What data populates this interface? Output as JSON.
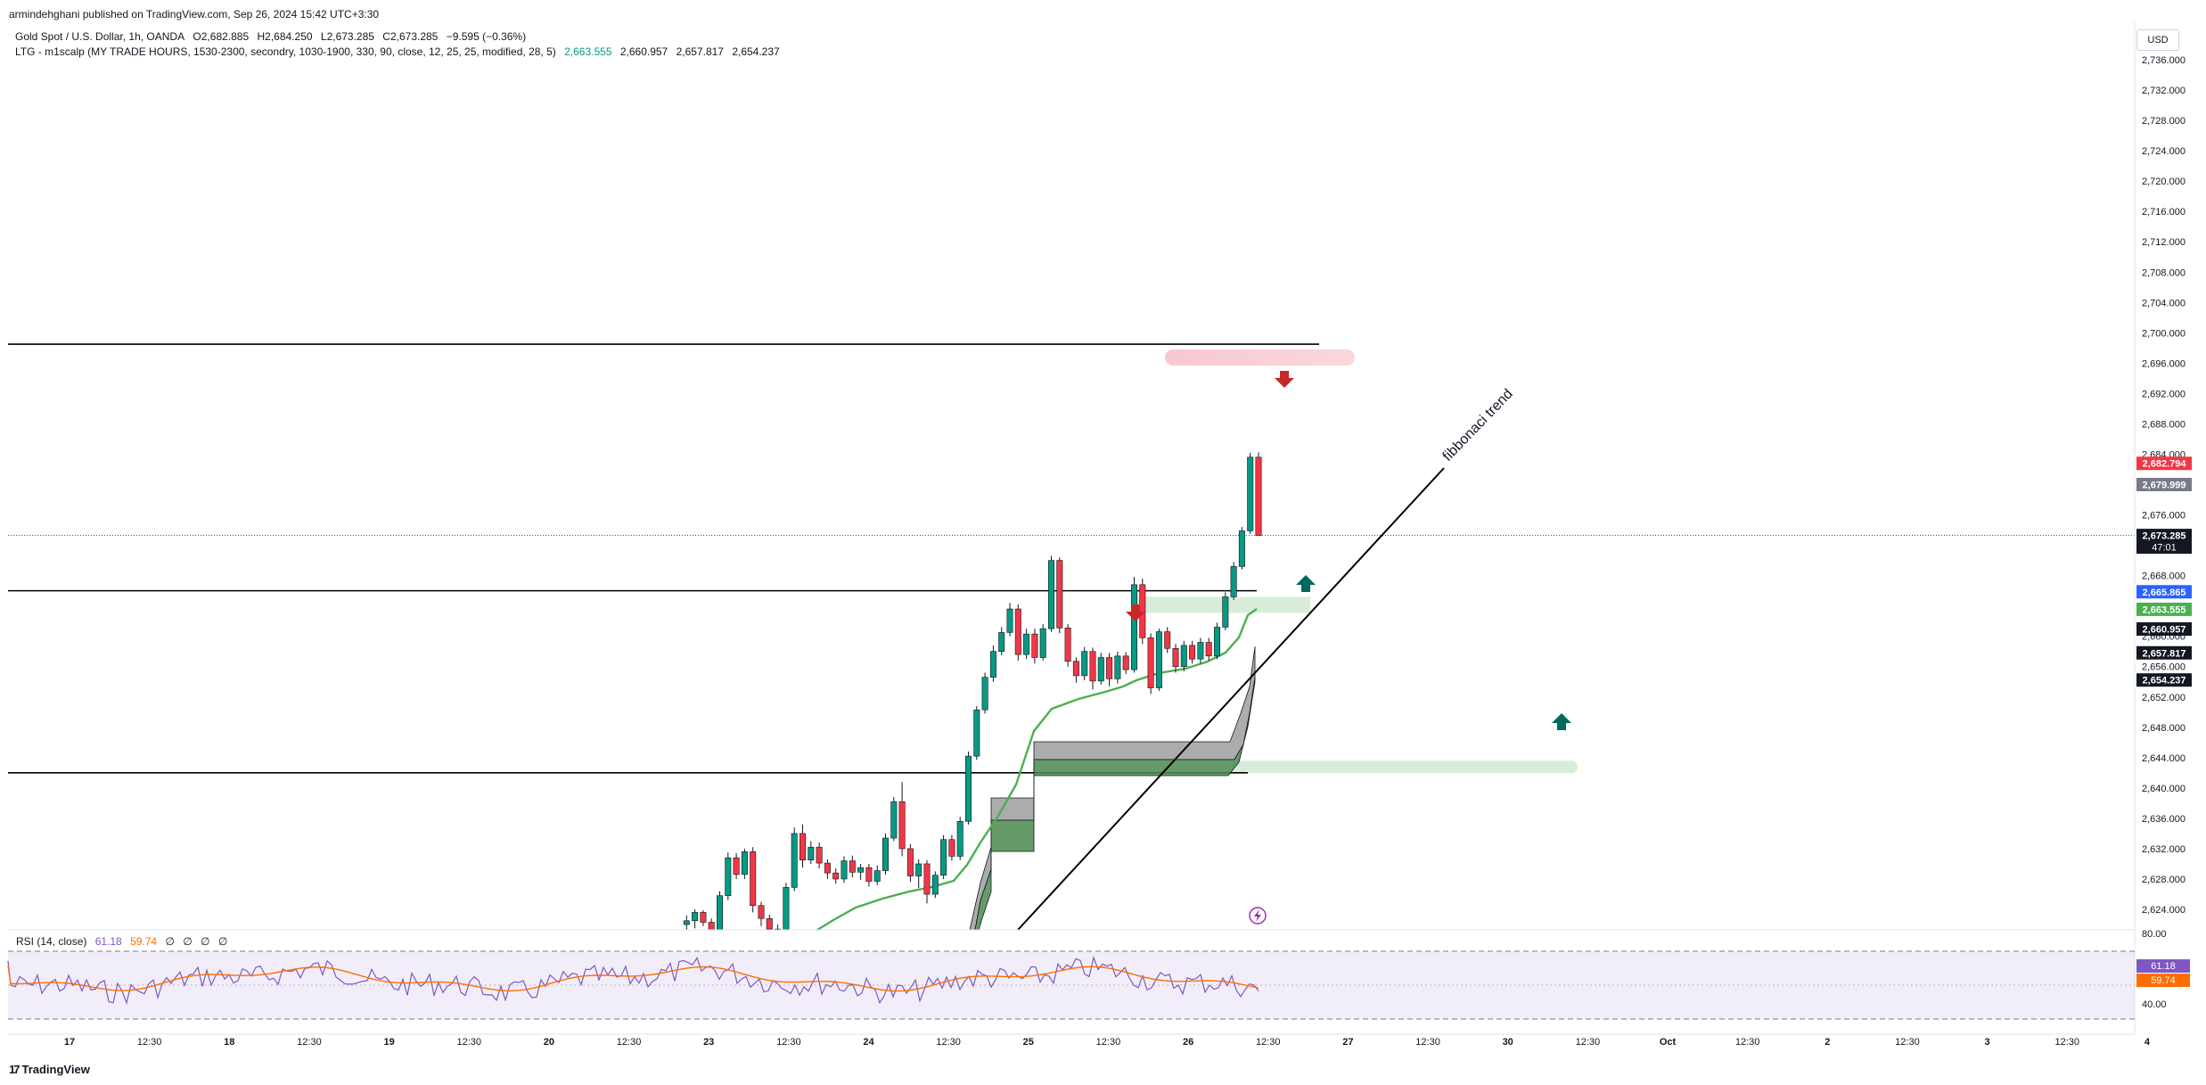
{
  "header": {
    "published": "armindehghani published on TradingView.com, Sep 26, 2024 15:42 UTC+3:30",
    "symbol": "Gold Spot / U.S. Dollar, 1h, OANDA",
    "open": "O2,682.885",
    "high": "H2,684.250",
    "low": "L2,673.285",
    "close": "C2,673.285",
    "change": "−9.595 (−0.36%)",
    "indicator": "LTG - m1scalp (MY TRADE HOURS, 1530-2300, secondry, 1030-1900, 330, 90, close, 12, 25, 25, modified, 28, 5)",
    "indicator_v1": "2,663.555",
    "indicator_v2": "2,660.957",
    "indicator_v3": "2,657.817",
    "indicator_v4": "2,654.237"
  },
  "currency": "USD",
  "brand": "TradingView",
  "brand_icon": "tradingview-logo-icon",
  "rsi": {
    "label": "RSI (14, close)",
    "rsi_value": "61.18",
    "ma_value": "59.74",
    "placeholders": [
      "∅",
      "∅",
      "∅",
      "∅"
    ],
    "axis_top": "80.00",
    "axis_bottom": "40.00"
  },
  "annotation": {
    "text": "fibbonaci trend",
    "icon": "lightning-icon"
  },
  "colors": {
    "up": "#089981",
    "down": "#f23645",
    "ma": "#4caf50",
    "rsi": "#7e57c2",
    "rsi_ma": "#ff6d00"
  },
  "chart_data": {
    "type": "candlestick",
    "title": "",
    "ylim": [
      2620,
      2738
    ],
    "y_ticks": [
      "2,736.000",
      "2,732.000",
      "2,728.000",
      "2,724.000",
      "2,720.000",
      "2,716.000",
      "2,712.000",
      "2,708.000",
      "2,704.000",
      "2,700.000",
      "2,696.000",
      "2,692.000",
      "2,688.000",
      "2,684.000",
      "2,680.000",
      "2,676.000",
      "2,672.000",
      "2,668.000",
      "2,664.000",
      "2,660.000",
      "2,656.000",
      "2,652.000",
      "2,648.000",
      "2,644.000",
      "2,640.000",
      "2,636.000",
      "2,632.000",
      "2,628.000",
      "2,624.000"
    ],
    "x_ticks": [
      "17",
      "12:30",
      "18",
      "12:30",
      "19",
      "12:30",
      "20",
      "12:30",
      "23",
      "12:30",
      "24",
      "12:30",
      "25",
      "12:30",
      "26",
      "12:30",
      "27",
      "12:30",
      "30",
      "12:30",
      "Oct",
      "12:30",
      "2",
      "12:30",
      "3",
      "12:30",
      "4"
    ],
    "price_labels": [
      {
        "text": "2,682.794",
        "value": 2682.794,
        "color": "#f23645"
      },
      {
        "text": "2,679.999",
        "value": 2679.999,
        "color": "#787b86"
      },
      {
        "text": "2,673.285",
        "sub": "47:01",
        "value": 2673.285,
        "color": "#131722"
      },
      {
        "text": "2,665.865",
        "value": 2665.865,
        "color": "#2962ff"
      },
      {
        "text": "2,663.555",
        "value": 2663.555,
        "color": "#4caf50"
      },
      {
        "text": "2,660.957",
        "value": 2660.957,
        "color": "#131722"
      },
      {
        "text": "2,657.817",
        "value": 2657.817,
        "color": "#131722"
      },
      {
        "text": "2,654.237",
        "value": 2654.237,
        "color": "#131722"
      }
    ],
    "horizontal_lines": [
      2698.5,
      2666.0,
      2642.0
    ],
    "current_price": 2673.285,
    "candles": [
      [
        2622.0,
        2623.2,
        2621.0,
        2622.5
      ],
      [
        2622.5,
        2624.0,
        2621.5,
        2623.6
      ],
      [
        2623.6,
        2623.9,
        2621.8,
        2622.3
      ],
      [
        2622.3,
        2622.8,
        2620.5,
        2621.0
      ],
      [
        2621.0,
        2626.4,
        2620.6,
        2625.8
      ],
      [
        2625.8,
        2631.5,
        2625.2,
        2630.8
      ],
      [
        2630.8,
        2631.4,
        2628.0,
        2628.6
      ],
      [
        2628.6,
        2632.0,
        2628.0,
        2631.6
      ],
      [
        2631.6,
        2632.2,
        2623.6,
        2624.5
      ],
      [
        2624.5,
        2625.0,
        2621.8,
        2622.8
      ],
      [
        2622.8,
        2623.3,
        2620.8,
        2621.4
      ],
      [
        2621.4,
        2622.0,
        2620.5,
        2621.2
      ],
      [
        2621.2,
        2627.5,
        2620.8,
        2626.9
      ],
      [
        2626.9,
        2634.8,
        2626.4,
        2634.0
      ],
      [
        2634.0,
        2635.2,
        2629.5,
        2630.5
      ],
      [
        2630.5,
        2633.0,
        2630.0,
        2632.2
      ],
      [
        2632.2,
        2632.8,
        2629.4,
        2630.1
      ],
      [
        2630.1,
        2630.6,
        2628.0,
        2628.8
      ],
      [
        2628.8,
        2629.4,
        2627.4,
        2628.0
      ],
      [
        2628.0,
        2631.0,
        2627.5,
        2630.4
      ],
      [
        2630.4,
        2631.1,
        2628.2,
        2628.9
      ],
      [
        2628.9,
        2630.0,
        2627.9,
        2629.5
      ],
      [
        2629.5,
        2630.0,
        2627.0,
        2627.7
      ],
      [
        2627.7,
        2629.8,
        2627.2,
        2629.1
      ],
      [
        2629.1,
        2634.0,
        2628.6,
        2633.4
      ],
      [
        2633.4,
        2638.8,
        2633.0,
        2638.2
      ],
      [
        2638.2,
        2640.8,
        2631.0,
        2632.0
      ],
      [
        2632.0,
        2632.6,
        2627.6,
        2628.4
      ],
      [
        2628.4,
        2630.6,
        2626.8,
        2630.0
      ],
      [
        2630.0,
        2630.5,
        2624.8,
        2626.0
      ],
      [
        2626.0,
        2629.0,
        2625.5,
        2628.5
      ],
      [
        2628.5,
        2633.8,
        2628.0,
        2633.2
      ],
      [
        2633.2,
        2633.8,
        2630.4,
        2631.0
      ],
      [
        2631.0,
        2636.2,
        2630.5,
        2635.6
      ],
      [
        2635.6,
        2644.8,
        2635.2,
        2644.2
      ],
      [
        2644.2,
        2650.8,
        2643.7,
        2650.3
      ],
      [
        2650.3,
        2655.2,
        2649.8,
        2654.6
      ],
      [
        2654.6,
        2658.8,
        2654.0,
        2658.0
      ],
      [
        2658.0,
        2661.2,
        2657.5,
        2660.5
      ],
      [
        2660.5,
        2664.4,
        2660.0,
        2663.6
      ],
      [
        2663.6,
        2664.2,
        2656.8,
        2657.6
      ],
      [
        2657.6,
        2661.0,
        2657.0,
        2660.3
      ],
      [
        2660.3,
        2661.0,
        2656.4,
        2657.2
      ],
      [
        2657.2,
        2661.6,
        2656.8,
        2661.0
      ],
      [
        2661.0,
        2670.6,
        2660.6,
        2670.0
      ],
      [
        2670.0,
        2670.4,
        2660.4,
        2661.1
      ],
      [
        2661.1,
        2661.6,
        2656.0,
        2656.7
      ],
      [
        2656.7,
        2657.2,
        2653.9,
        2654.8
      ],
      [
        2654.8,
        2658.6,
        2654.2,
        2658.0
      ],
      [
        2658.0,
        2658.5,
        2653.0,
        2654.1
      ],
      [
        2654.1,
        2657.8,
        2653.6,
        2657.2
      ],
      [
        2657.2,
        2657.8,
        2653.4,
        2654.4
      ],
      [
        2654.4,
        2658.0,
        2653.8,
        2657.4
      ],
      [
        2657.4,
        2657.9,
        2655.0,
        2655.6
      ],
      [
        2655.6,
        2667.8,
        2655.2,
        2666.8
      ],
      [
        2666.8,
        2667.6,
        2659.0,
        2659.8
      ],
      [
        2659.8,
        2660.4,
        2652.4,
        2653.2
      ],
      [
        2653.2,
        2661.0,
        2652.8,
        2660.6
      ],
      [
        2660.6,
        2661.2,
        2657.8,
        2658.4
      ],
      [
        2658.4,
        2659.0,
        2655.2,
        2656.0
      ],
      [
        2656.0,
        2659.4,
        2655.4,
        2658.8
      ],
      [
        2658.8,
        2659.4,
        2656.4,
        2657.0
      ],
      [
        2657.0,
        2659.8,
        2656.4,
        2659.2
      ],
      [
        2659.2,
        2659.8,
        2656.8,
        2657.4
      ],
      [
        2657.4,
        2661.8,
        2657.0,
        2661.2
      ],
      [
        2661.2,
        2665.8,
        2660.8,
        2665.2
      ],
      [
        2665.2,
        2669.8,
        2664.8,
        2669.2
      ],
      [
        2669.2,
        2674.4,
        2668.8,
        2673.9
      ],
      [
        2673.9,
        2684.2,
        2673.5,
        2683.6
      ],
      [
        2683.6,
        2684.25,
        2673.285,
        2673.285
      ]
    ]
  }
}
